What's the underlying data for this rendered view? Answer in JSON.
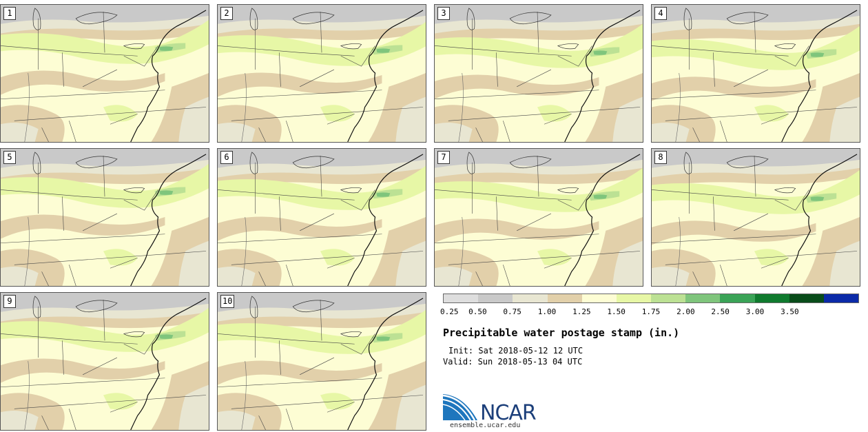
{
  "colors": {
    "c025": "#dedede",
    "c050": "#c9c9c9",
    "c075": "#e8e6d2",
    "c100": "#e2d0aa",
    "c125": "#fdfdd4",
    "c150": "#e7f7a6",
    "c175": "#bce194",
    "c200": "#7fc57c",
    "c250": "#3aa357",
    "c300": "#0f7a2e",
    "c350": "#094c1a",
    "cmax": "#0b2aa8"
  },
  "members": [
    "1",
    "2",
    "3",
    "4",
    "5",
    "6",
    "7",
    "8",
    "9",
    "10"
  ],
  "legend": {
    "ticks": [
      "0.25",
      "0.50",
      "0.75",
      "1.00",
      "1.25",
      "1.50",
      "1.75",
      "2.00",
      "2.50",
      "3.00",
      "3.50"
    ],
    "segment_colors": [
      "#dedede",
      "#c9c9c9",
      "#e8e6d2",
      "#e2d0aa",
      "#fdfdd4",
      "#e7f7a6",
      "#bce194",
      "#7fc57c",
      "#3aa357",
      "#0f7a2e",
      "#094c1a",
      "#0b2aa8"
    ]
  },
  "title": "Precipitable water postage stamp (in.)",
  "init": "Init: Sat 2018-05-12 12 UTC",
  "valid": "Valid: Sun 2018-05-13 04 UTC",
  "logo": {
    "name": "NCAR",
    "site": "ensemble.ucar.edu"
  }
}
